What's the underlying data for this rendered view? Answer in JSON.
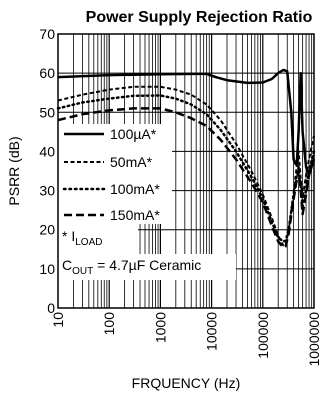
{
  "chart_data": {
    "type": "line",
    "title": "Power Supply Rejection Ratio",
    "xlabel": "FRQUENCY (Hz)",
    "ylabel": "PSRR (dB)",
    "xscale": "log",
    "xlim": [
      10,
      1000000
    ],
    "ylim": [
      0,
      70
    ],
    "y_ticks": [
      "0",
      "10",
      "20",
      "30",
      "40",
      "50",
      "60",
      "70"
    ],
    "x_ticks": [
      "10",
      "100",
      "1000",
      "10000",
      "100000",
      "1000000"
    ],
    "grid": true,
    "legend_position": "left",
    "legend_title": "* I",
    "legend_title_sub": "LOAD",
    "note": {
      "prefix": "C",
      "sub": "OUT",
      "suffix": " = 4.7µF Ceramic"
    },
    "series": [
      {
        "name": "100µA*",
        "style": "solid",
        "x": [
          10,
          100,
          1000,
          5000,
          8000,
          12000,
          20000,
          50000,
          100000,
          150000,
          200000,
          250000,
          300000,
          360000,
          400000,
          430000,
          460000,
          500000,
          550000,
          600000,
          700000,
          800000,
          1000000
        ],
        "y": [
          59,
          59.5,
          59.7,
          59.8,
          59.8,
          59.0,
          58.2,
          57.5,
          57.6,
          58.5,
          60,
          60.8,
          60.5,
          50,
          38,
          37,
          36.5,
          45,
          60,
          45,
          36,
          34,
          38
        ]
      },
      {
        "name": "50mA*",
        "style": "dashed",
        "x": [
          10,
          30,
          100,
          300,
          1000,
          2000,
          4000,
          8000,
          15000,
          30000,
          60000,
          100000,
          150000,
          200000,
          250000,
          280000,
          320000,
          380000,
          450000,
          500000,
          550000,
          600000,
          700000,
          800000,
          1000000
        ],
        "y": [
          53,
          54.5,
          55.8,
          56.5,
          56.5,
          55.8,
          54.5,
          52,
          48,
          42,
          35,
          29,
          23,
          18.5,
          16,
          16.2,
          20,
          27,
          35,
          40,
          33,
          28,
          34,
          38,
          44
        ]
      },
      {
        "name": "100mA*",
        "style": "dotted",
        "x": [
          10,
          30,
          100,
          300,
          1000,
          2000,
          4000,
          8000,
          15000,
          30000,
          60000,
          100000,
          150000,
          200000,
          250000,
          280000,
          320000,
          380000,
          450000,
          500000,
          550000,
          600000,
          700000,
          800000,
          1000000
        ],
        "y": [
          51,
          52.5,
          53.5,
          54.2,
          54.3,
          53.5,
          52,
          49.5,
          45.5,
          40,
          33.5,
          28,
          22,
          18,
          17,
          17.2,
          20,
          27,
          33,
          36,
          31,
          26,
          30,
          35,
          40
        ]
      },
      {
        "name": "150mA*",
        "style": "longdash",
        "x": [
          10,
          30,
          100,
          300,
          1000,
          2000,
          4000,
          8000,
          15000,
          30000,
          60000,
          100000,
          150000,
          200000,
          250000,
          280000,
          320000,
          380000,
          450000,
          500000,
          550000,
          600000,
          700000,
          800000,
          1000000
        ],
        "y": [
          48,
          49.5,
          50.5,
          51,
          51,
          50,
          48.5,
          46.5,
          43,
          38,
          32,
          27,
          21,
          17,
          15.5,
          15.8,
          19,
          26,
          32,
          35,
          30,
          24,
          29,
          34,
          39
        ]
      }
    ]
  }
}
